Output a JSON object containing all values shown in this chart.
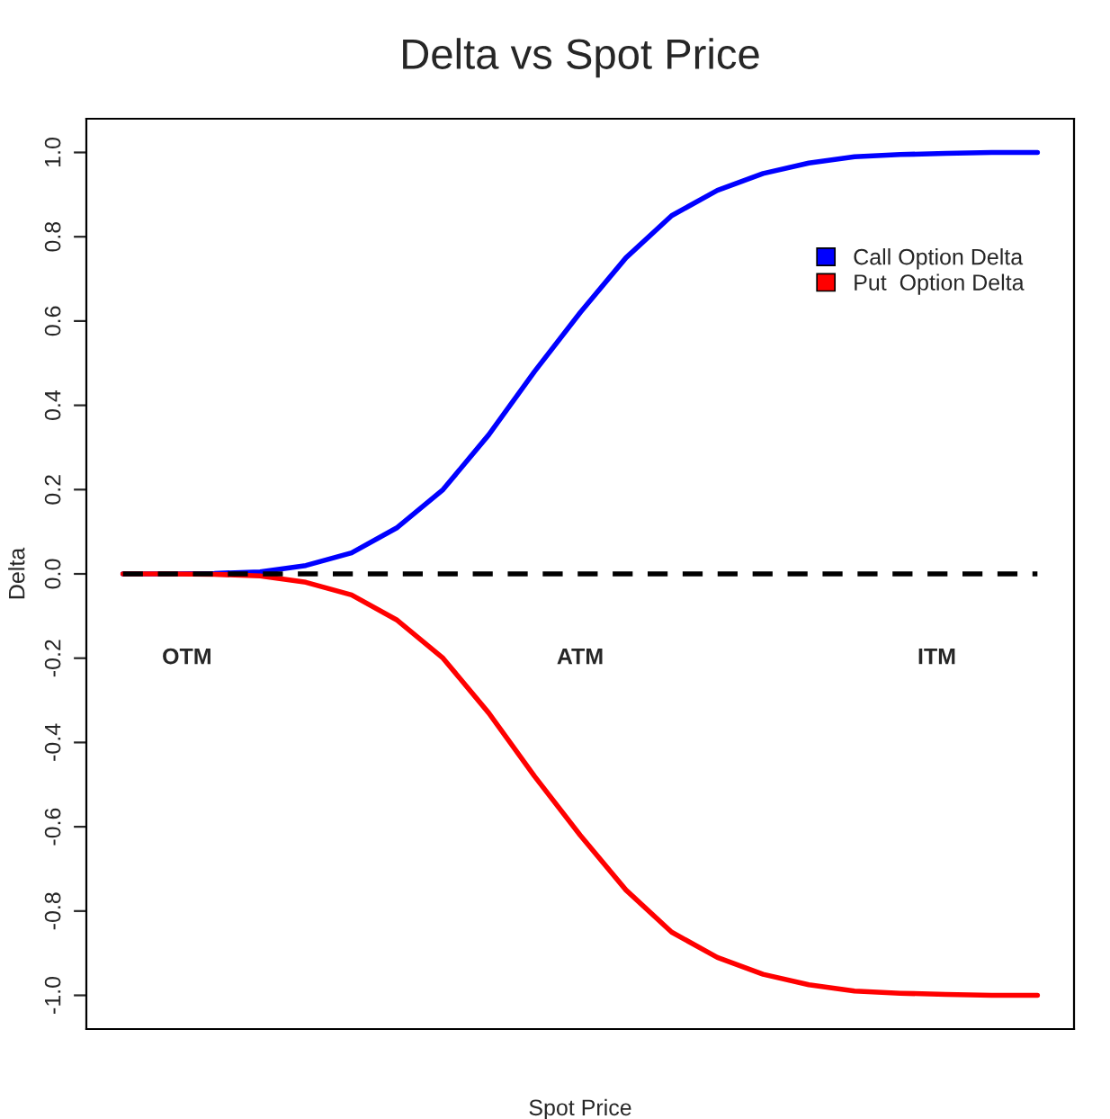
{
  "chart_data": {
    "type": "line",
    "title": "Delta vs Spot Price",
    "xlabel": "Spot Price",
    "ylabel": "Delta",
    "categories": [
      null,
      null,
      null,
      null,
      null,
      null,
      null,
      null,
      null,
      null,
      null,
      null,
      null,
      null,
      null,
      null,
      null,
      null,
      null,
      null,
      null
    ],
    "series": [
      {
        "name": "Call Option Delta",
        "color": "#0000ff",
        "values": [
          0,
          0,
          0.001,
          0.005,
          0.02,
          0.05,
          0.11,
          0.2,
          0.33,
          0.48,
          0.62,
          0.75,
          0.85,
          0.91,
          0.95,
          0.975,
          0.99,
          0.995,
          0.998,
          1.0,
          1.0
        ]
      },
      {
        "name": "Put  Option Delta",
        "color": "#ff0000",
        "values": [
          0,
          0,
          -0.001,
          -0.005,
          -0.02,
          -0.05,
          -0.11,
          -0.2,
          -0.33,
          -0.48,
          -0.62,
          -0.75,
          -0.85,
          -0.91,
          -0.95,
          -0.975,
          -0.99,
          -0.995,
          -0.998,
          -1.0,
          -1.0
        ]
      },
      {
        "color": "#000000",
        "line_style": "dashed",
        "values": [
          0,
          0,
          0,
          0,
          0,
          0,
          0,
          0,
          0,
          0,
          0,
          0,
          0,
          0,
          0,
          0,
          0,
          0,
          0,
          0,
          0
        ]
      }
    ],
    "annotations": [
      "OTM",
      "ATM",
      "ITM"
    ],
    "ylim": [
      -1.08,
      1.08
    ],
    "yticks": [
      {
        "value": -1.0,
        "label": "-1.0"
      },
      {
        "value": -0.8,
        "label": "-0.8"
      },
      {
        "value": -0.6,
        "label": "-0.6"
      },
      {
        "value": -0.4,
        "label": "-0.4"
      },
      {
        "value": -0.2,
        "label": "-0.2"
      },
      {
        "value": 0.0,
        "label": "0.0"
      },
      {
        "value": 0.2,
        "label": "0.2"
      },
      {
        "value": 0.4,
        "label": "0.4"
      },
      {
        "value": 0.6,
        "label": "0.6"
      },
      {
        "value": 0.8,
        "label": "0.8"
      },
      {
        "value": 1.0,
        "label": "1.0"
      }
    ],
    "tick_labels": "y",
    "grid": false,
    "legend": "top right"
  }
}
